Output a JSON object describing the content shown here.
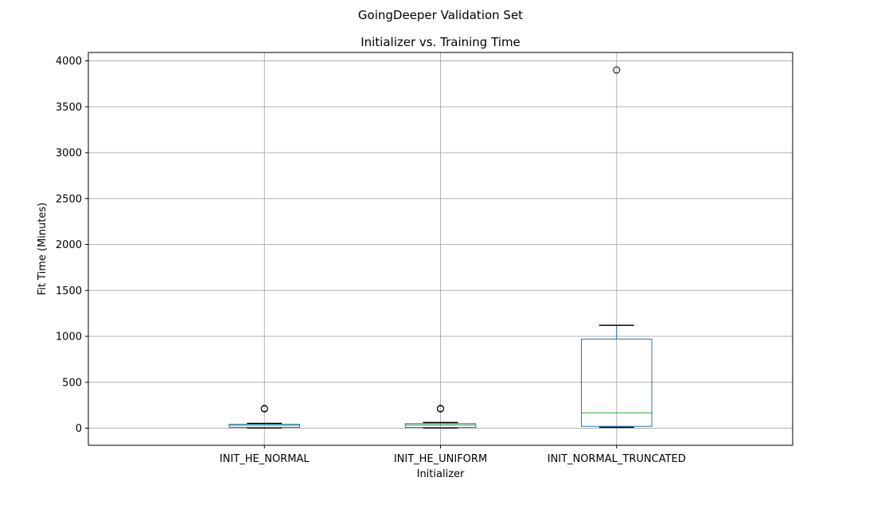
{
  "chart_data": {
    "type": "box",
    "suptitle": "GoingDeeper Validation Set",
    "title": "Initializer vs. Training Time",
    "xlabel": "Initializer",
    "ylabel": "Fit Time (Minutes)",
    "ylim": [
      -185,
      4080
    ],
    "yticks": [
      0,
      500,
      1000,
      1500,
      2000,
      2500,
      3000,
      3500,
      4000
    ],
    "grid": true,
    "categories": [
      "INIT_HE_NORMAL",
      "INIT_HE_UNIFORM",
      "INIT_NORMAL_TRUNCATED"
    ],
    "boxes": [
      {
        "name": "INIT_HE_NORMAL",
        "whislo": 2,
        "q1": 8,
        "median": 30,
        "q3": 43,
        "whishi": 52,
        "fliers": [
          210,
          215
        ]
      },
      {
        "name": "INIT_HE_UNIFORM",
        "whislo": 2,
        "q1": 8,
        "median": 35,
        "q3": 50,
        "whishi": 62,
        "fliers": [
          210,
          215
        ]
      },
      {
        "name": "INIT_NORMAL_TRUNCATED",
        "whislo": 10,
        "q1": 20,
        "median": 168,
        "q3": 970,
        "whishi": 1120,
        "fliers": [
          3900
        ]
      }
    ],
    "colors": {
      "box": "#1f77b4",
      "median": "#2ca02c",
      "whisker": "#000000",
      "grid": "#b0b0b0",
      "flier": "#000000"
    }
  }
}
